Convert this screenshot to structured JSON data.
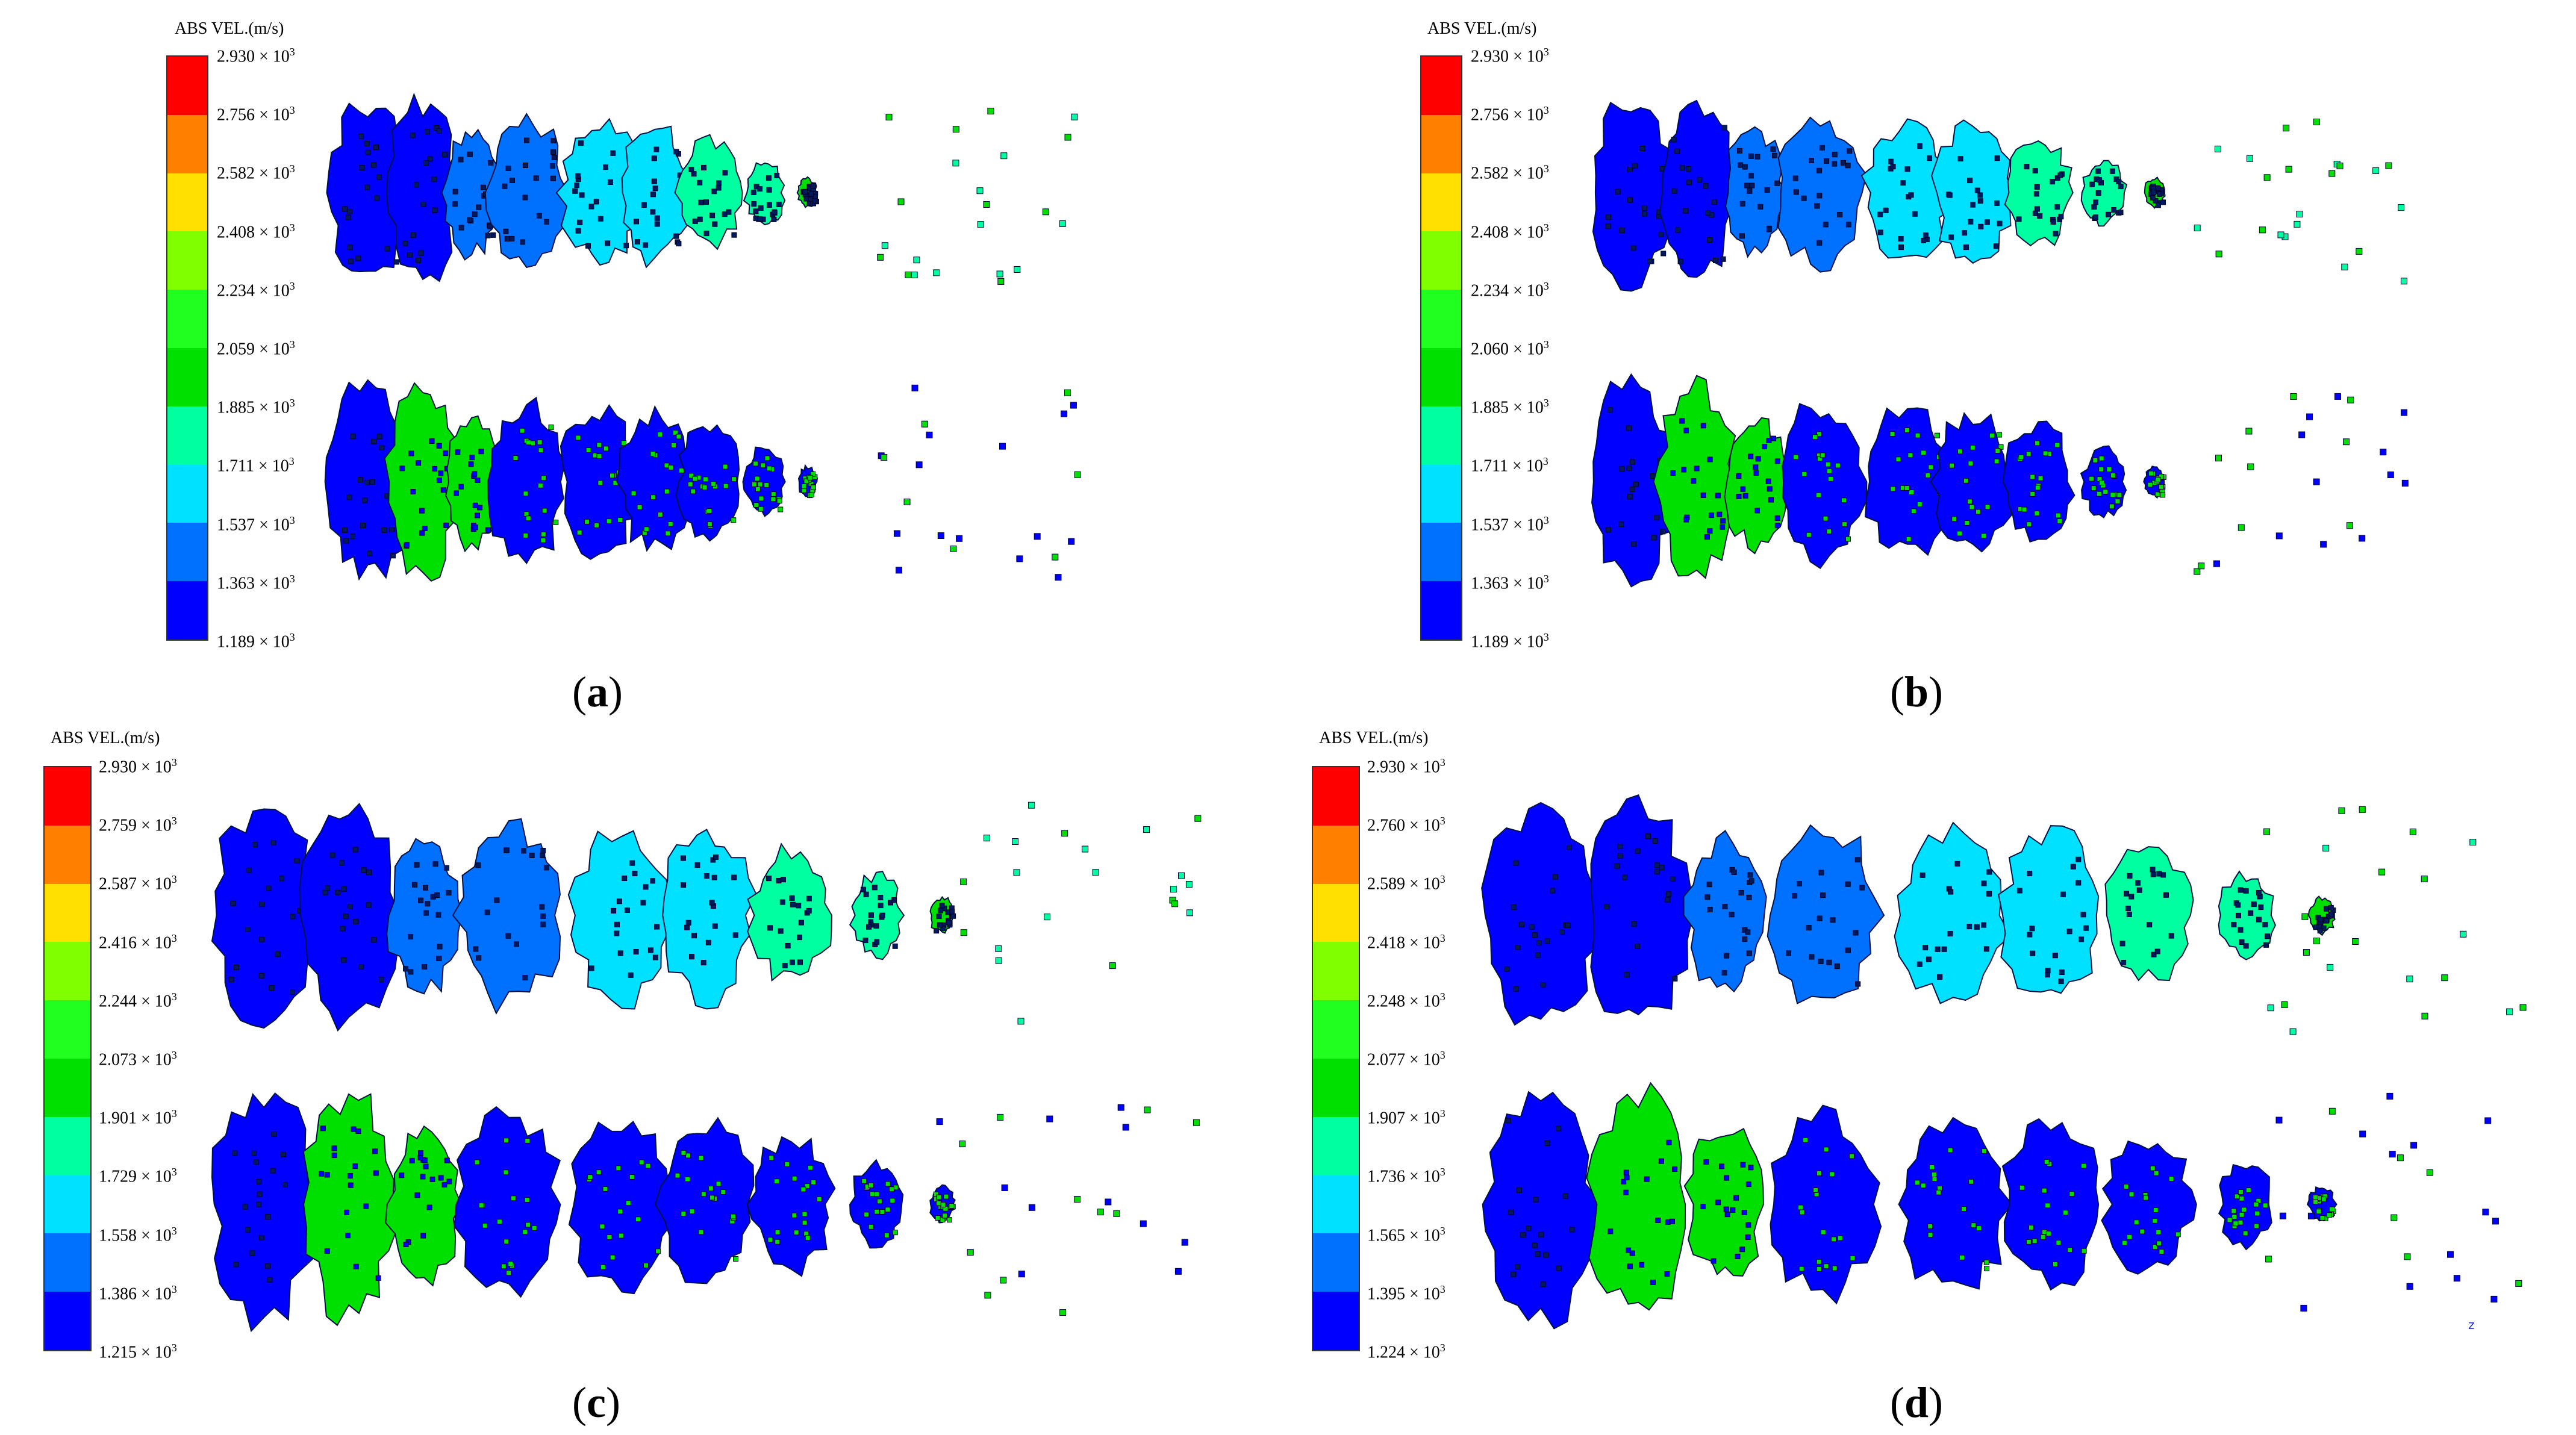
{
  "colormap": [
    "#0000ff",
    "#0070ff",
    "#00e0ff",
    "#00ffa0",
    "#00e000",
    "#20ff20",
    "#80ff00",
    "#ffe000",
    "#ff8000",
    "#ff0000"
  ],
  "panels": [
    {
      "id": "a",
      "caption_letter": "a",
      "colorbar_title": "ABS VEL.(m/s)",
      "ticks": [
        "2.930",
        "2.756",
        "2.582",
        "2.408",
        "2.234",
        "2.059",
        "1.885",
        "1.711",
        "1.537",
        "1.363",
        "1.189"
      ],
      "tick_exponent": "3",
      "tick_mult": " × 10"
    },
    {
      "id": "b",
      "caption_letter": "b",
      "colorbar_title": "ABS VEL.(m/s)",
      "ticks": [
        "2.930",
        "2.756",
        "2.582",
        "2.408",
        "2.234",
        "2.060",
        "1.885",
        "1.711",
        "1.537",
        "1.363",
        "1.189"
      ],
      "tick_exponent": "3",
      "tick_mult": " × 10"
    },
    {
      "id": "c",
      "caption_letter": "c",
      "colorbar_title": "ABS VEL.(m/s)",
      "ticks": [
        "2.930",
        "2.759",
        "2.587",
        "2.416",
        "2.244",
        "2.073",
        "1.901",
        "1.729",
        "1.558",
        "1.386",
        "1.215"
      ],
      "tick_exponent": "3",
      "tick_mult": " × 10"
    },
    {
      "id": "d",
      "caption_letter": "d",
      "colorbar_title": "ABS VEL.(m/s)",
      "ticks": [
        "2.930",
        "2.760",
        "2.589",
        "2.418",
        "2.248",
        "2.077",
        "1.907",
        "1.736",
        "1.565",
        "1.395",
        "1.224"
      ],
      "tick_exponent": "3",
      "tick_mult": " × 10"
    }
  ],
  "axis_triad_label": "z"
}
